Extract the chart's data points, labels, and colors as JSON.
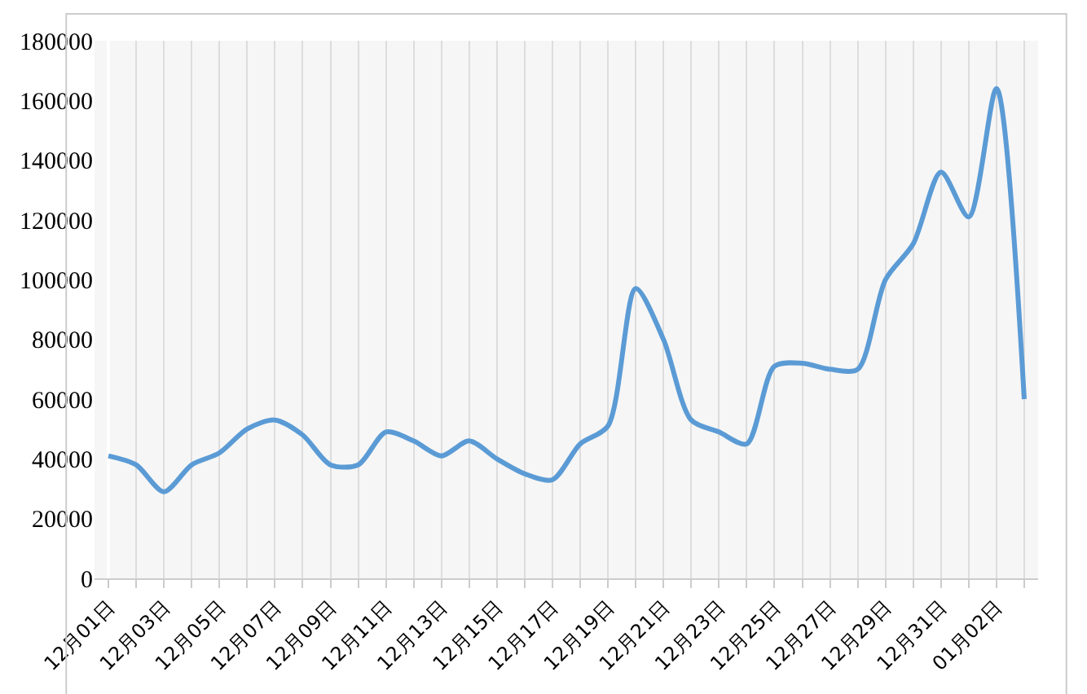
{
  "chart_data": {
    "type": "line",
    "categories": [
      "12月01日",
      null,
      "12月03日",
      null,
      "12月05日",
      null,
      "12月07日",
      null,
      "12月09日",
      null,
      "12月11日",
      null,
      "12月13日",
      null,
      "12月15日",
      null,
      "12月17日",
      null,
      "12月19日",
      null,
      "12月21日",
      null,
      "12月23日",
      null,
      "12月25日",
      null,
      "12月27日",
      null,
      "12月29日",
      null,
      "12月31日",
      null,
      "01月02日",
      null
    ],
    "series": [
      {
        "color": "#5b9bd5",
        "values": [
          41000,
          38000,
          29000,
          38000,
          42000,
          50000,
          53000,
          48000,
          38000,
          38000,
          49000,
          46000,
          41000,
          46000,
          40000,
          35000,
          33000,
          45000,
          51000,
          97000,
          80000,
          53000,
          49000,
          45000,
          71000,
          72000,
          70000,
          70000,
          100000,
          112000,
          136000,
          121000,
          164000,
          60000
        ]
      }
    ],
    "ylim": [
      0,
      180000
    ],
    "yticks": [
      0,
      20000,
      40000,
      60000,
      80000,
      100000,
      120000,
      140000,
      160000,
      180000
    ],
    "grid": "x",
    "marker": "none",
    "line_style": "solid"
  }
}
